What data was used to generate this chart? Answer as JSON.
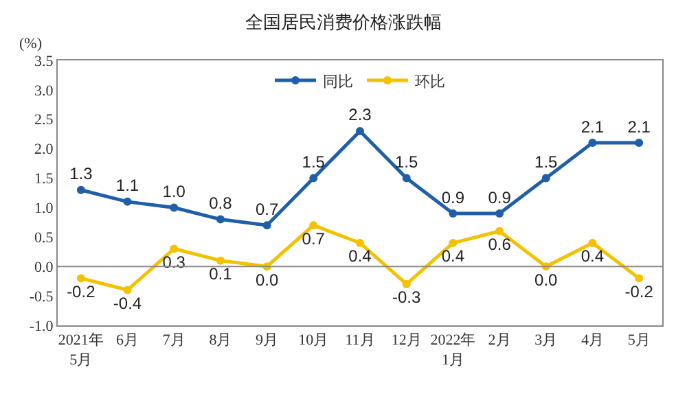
{
  "chart_data": {
    "type": "line",
    "title": "全国居民消费价格涨跌幅",
    "ylabel": "(%)",
    "categories": [
      "2021年\n5月",
      "6月",
      "7月",
      "8月",
      "9月",
      "10月",
      "11月",
      "12月",
      "2022年\n1月",
      "2月",
      "3月",
      "4月",
      "5月"
    ],
    "series": [
      {
        "name": "同比",
        "color": "#1f5fa8",
        "values": [
          1.3,
          1.1,
          1.0,
          0.8,
          0.7,
          1.5,
          2.3,
          1.5,
          0.9,
          0.9,
          1.5,
          2.1,
          2.1
        ],
        "value_labels": [
          "1.3",
          "1.1",
          "1.0",
          "0.8",
          "0.7",
          "1.5",
          "2.3",
          "1.5",
          "0.9",
          "0.9",
          "1.5",
          "2.1",
          "2.1"
        ]
      },
      {
        "name": "环比",
        "color": "#f2c200",
        "values": [
          -0.2,
          -0.4,
          0.3,
          0.1,
          0.0,
          0.7,
          0.4,
          -0.3,
          0.4,
          0.6,
          0.0,
          0.4,
          -0.2
        ],
        "value_labels": [
          "-0.2",
          "-0.4",
          "0.3",
          "0.1",
          "0.0",
          "0.7",
          "0.4",
          "-0.3",
          "0.4",
          "0.6",
          "0.0",
          "0.4",
          "-0.2"
        ]
      }
    ],
    "ylim": [
      -1.0,
      3.5
    ],
    "yticks": [
      {
        "value": -1,
        "label": "-1.0"
      },
      {
        "value": -0.5,
        "label": "-0.5"
      },
      {
        "value": 0,
        "label": "0.0"
      },
      {
        "value": 0.5,
        "label": "0.5"
      },
      {
        "value": 1,
        "label": "1.0"
      },
      {
        "value": 1.5,
        "label": "1.5"
      },
      {
        "value": 2,
        "label": "2.0"
      },
      {
        "value": 2.5,
        "label": "2.5"
      },
      {
        "value": 3,
        "label": "3.0"
      },
      {
        "value": 3.5,
        "label": "3.5"
      }
    ],
    "ref_lines": [
      {
        "axis": "y",
        "value": 0,
        "color": "#888888"
      }
    ],
    "legend": "top",
    "marker": "circle",
    "line_style": "solid"
  }
}
